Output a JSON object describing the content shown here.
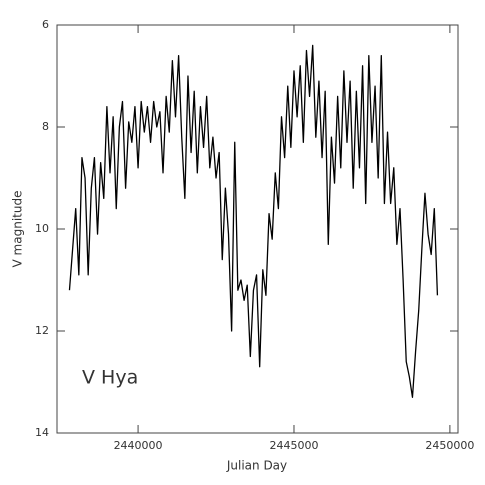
{
  "chart_data": {
    "type": "line",
    "annotation": "V Hya",
    "xlabel": "Julian Day",
    "ylabel": "V magnitude",
    "xlim": [
      2437400,
      2450260
    ],
    "ylim": [
      6,
      14
    ],
    "invert_y": true,
    "xticks": [
      2440000,
      2445000,
      2450000
    ],
    "yticks": [
      6,
      8,
      10,
      12,
      14
    ],
    "color": "#000000",
    "x": [
      2437800,
      2437900,
      2438000,
      2438100,
      2438200,
      2438300,
      2438400,
      2438500,
      2438600,
      2438700,
      2438800,
      2438900,
      2439000,
      2439100,
      2439200,
      2439300,
      2439400,
      2439500,
      2439600,
      2439700,
      2439800,
      2439900,
      2440000,
      2440100,
      2440200,
      2440300,
      2440400,
      2440500,
      2440600,
      2440700,
      2440800,
      2440900,
      2441000,
      2441100,
      2441200,
      2441300,
      2441400,
      2441500,
      2441600,
      2441700,
      2441800,
      2441900,
      2442000,
      2442100,
      2442200,
      2442300,
      2442400,
      2442500,
      2442600,
      2442700,
      2442800,
      2442900,
      2443000,
      2443100,
      2443200,
      2443300,
      2443400,
      2443500,
      2443600,
      2443700,
      2443800,
      2443900,
      2444000,
      2444100,
      2444200,
      2444300,
      2444400,
      2444500,
      2444600,
      2444700,
      2444800,
      2444900,
      2445000,
      2445100,
      2445200,
      2445300,
      2445400,
      2445500,
      2445600,
      2445700,
      2445800,
      2445900,
      2446000,
      2446100,
      2446200,
      2446300,
      2446400,
      2446500,
      2446600,
      2446700,
      2446800,
      2446900,
      2447000,
      2447100,
      2447200,
      2447300,
      2447400,
      2447500,
      2447600,
      2447700,
      2447800,
      2447900,
      2448000,
      2448100,
      2448200,
      2448300,
      2448400,
      2448500,
      2448600,
      2448700,
      2448800,
      2448900,
      2449000,
      2449100,
      2449200,
      2449300,
      2449400,
      2449500,
      2449600
    ],
    "values": [
      11.2,
      10.4,
      9.6,
      10.9,
      8.6,
      9.0,
      10.9,
      9.2,
      8.6,
      10.1,
      8.7,
      9.4,
      7.6,
      8.9,
      7.8,
      9.6,
      8.0,
      7.5,
      9.2,
      7.9,
      8.3,
      7.6,
      8.8,
      7.5,
      8.1,
      7.6,
      8.3,
      7.5,
      8.0,
      7.7,
      8.9,
      7.4,
      8.1,
      6.7,
      7.8,
      6.6,
      8.2,
      9.4,
      7.0,
      8.5,
      7.3,
      8.9,
      7.6,
      8.4,
      7.4,
      8.8,
      8.2,
      9.0,
      8.5,
      10.6,
      9.2,
      10.1,
      12.0,
      8.3,
      11.2,
      11.0,
      11.4,
      11.1,
      12.5,
      11.2,
      10.9,
      12.7,
      10.8,
      11.3,
      9.7,
      10.2,
      8.9,
      9.6,
      7.8,
      8.6,
      7.2,
      8.4,
      6.9,
      7.8,
      6.8,
      8.3,
      6.5,
      7.4,
      6.4,
      8.2,
      7.1,
      8.6,
      7.3,
      10.3,
      8.2,
      9.1,
      7.4,
      8.8,
      6.9,
      8.3,
      7.1,
      9.2,
      7.3,
      8.8,
      6.8,
      9.5,
      6.6,
      8.3,
      7.2,
      9.0,
      6.6,
      9.5,
      8.1,
      9.5,
      8.8,
      10.3,
      9.6,
      11.0,
      12.6,
      12.9,
      13.3,
      12.4,
      11.6,
      10.4,
      9.3,
      10.1,
      10.5,
      9.6,
      11.3
    ]
  }
}
